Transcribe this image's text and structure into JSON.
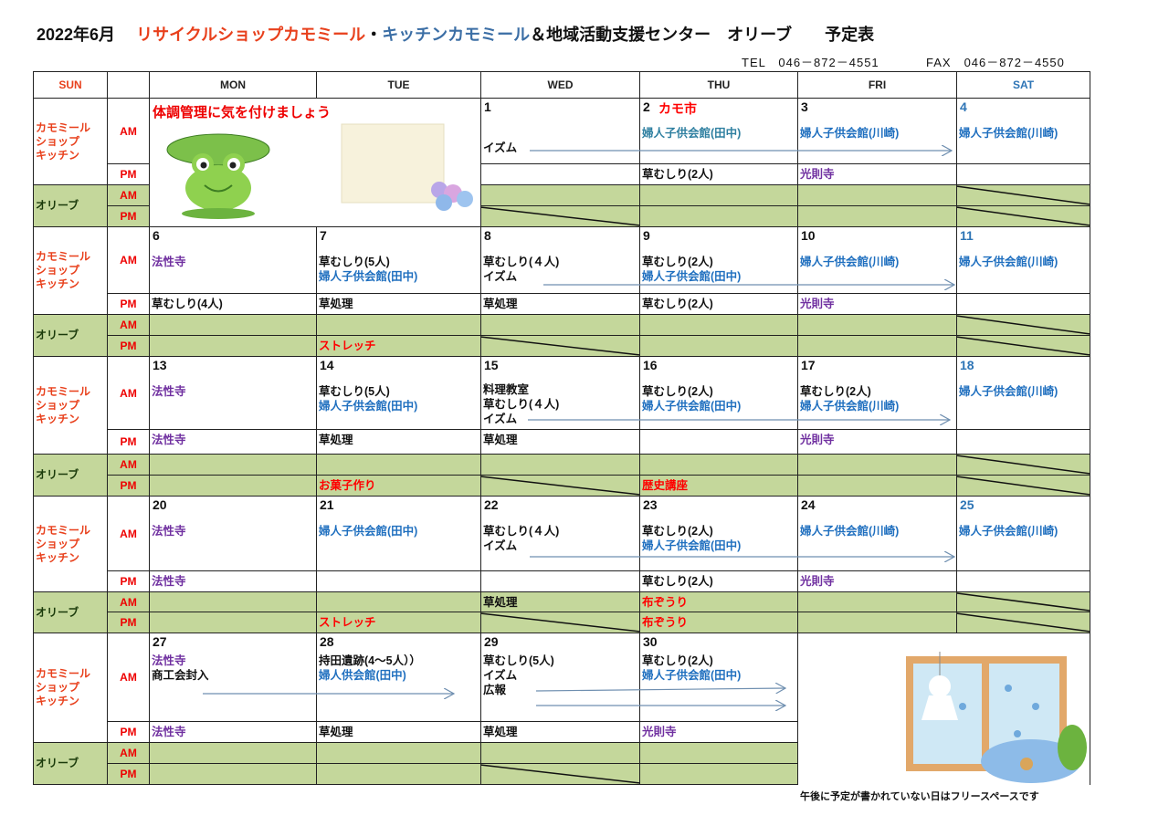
{
  "title": {
    "month": "2022年6月",
    "shop": "リサイクルショップカモミール",
    "sep": "・",
    "kitchen": "キッチンカモミール",
    "rest": "＆地域活動支援センター　オリーブ　　予定表"
  },
  "contact": {
    "tel": "TEL　046－872－4551",
    "fax": "FAX　046－872－4550"
  },
  "headers": [
    "SUN",
    "",
    "MON",
    "TUE",
    "WED",
    "THU",
    "FRI",
    "SAT"
  ],
  "labels": {
    "kamomile": "カモミール\nショップ\nキッチン",
    "olive": "オリーブ",
    "am": "AM",
    "pm": "PM"
  },
  "banner": "体調管理に気を付けましょう",
  "colors": {
    "sun": "#e8401c",
    "olive_fill": "#c4d79b",
    "sat_number": "#2e75b6",
    "event_red": "#ff0000",
    "temple_purple": "#7030a0",
    "center_blue": "#1f6fbf"
  },
  "weeks": [
    {
      "days": [
        null,
        null,
        {
          "num": "1",
          "am": [
            {
              "t": "",
              "c": "black"
            },
            {
              "t": "イズム",
              "c": "black"
            }
          ],
          "pm": [],
          "oam": [],
          "opm": [],
          "opm_closed": true
        },
        {
          "num": "2",
          "extra": "カモ市",
          "am": [
            {
              "t": "婦人子供会館(田中)",
              "c": "teal"
            }
          ],
          "pm": [
            {
              "t": "草むしり(2人)",
              "c": "black"
            }
          ],
          "oam": [],
          "opm": []
        },
        {
          "num": "3",
          "am": [
            {
              "t": "婦人子供会館(川崎)",
              "c": "blue"
            }
          ],
          "pm": [
            {
              "t": "光則寺",
              "c": "purple"
            }
          ],
          "oam": [],
          "opm": []
        },
        {
          "num": "4",
          "sat": true,
          "am": [
            {
              "t": "婦人子供会館(川崎)",
              "c": "blue"
            }
          ],
          "pm": [],
          "oam": [],
          "opm": [],
          "oam_closed": true,
          "opm_closed": true
        }
      ]
    },
    {
      "days": [
        {
          "num": "6",
          "am": [
            {
              "t": "法性寺",
              "c": "purple"
            }
          ],
          "pm": [
            {
              "t": "草むしり(4人)",
              "c": "black"
            }
          ],
          "oam": [],
          "opm": []
        },
        {
          "num": "7",
          "am": [
            {
              "t": "草むしり(5人)",
              "c": "black"
            },
            {
              "t": "婦人子供会館(田中)",
              "c": "blue"
            }
          ],
          "pm": [
            {
              "t": "草処理",
              "c": "black"
            }
          ],
          "oam": [],
          "opm": [
            {
              "t": "ストレッチ",
              "c": "red"
            }
          ]
        },
        {
          "num": "8",
          "am": [
            {
              "t": "草むしり(４人)",
              "c": "black"
            },
            {
              "t": "イズム",
              "c": "black"
            }
          ],
          "pm": [
            {
              "t": "草処理",
              "c": "black"
            }
          ],
          "oam": [],
          "opm": [],
          "opm_closed": true
        },
        {
          "num": "9",
          "am": [
            {
              "t": "草むしり(2人)",
              "c": "black"
            },
            {
              "t": "婦人子供会館(田中)",
              "c": "blue"
            }
          ],
          "pm": [
            {
              "t": "草むしり(2人)",
              "c": "black"
            }
          ],
          "oam": [],
          "opm": []
        },
        {
          "num": "10",
          "am": [
            {
              "t": "婦人子供会館(川崎)",
              "c": "blue"
            }
          ],
          "pm": [
            {
              "t": "光則寺",
              "c": "purple"
            }
          ],
          "oam": [],
          "opm": []
        },
        {
          "num": "11",
          "sat": true,
          "am": [
            {
              "t": "婦人子供会館(川崎)",
              "c": "blue"
            }
          ],
          "pm": [],
          "oam": [],
          "opm": [],
          "oam_closed": true,
          "opm_closed": true
        }
      ]
    },
    {
      "days": [
        {
          "num": "13",
          "am": [
            {
              "t": "法性寺",
              "c": "purple"
            }
          ],
          "pm": [
            {
              "t": "法性寺",
              "c": "purple"
            }
          ],
          "oam": [],
          "opm": []
        },
        {
          "num": "14",
          "am": [
            {
              "t": "草むしり(5人)",
              "c": "black"
            },
            {
              "t": "婦人子供会館(田中)",
              "c": "blue"
            }
          ],
          "pm": [
            {
              "t": "草処理",
              "c": "black"
            }
          ],
          "oam": [],
          "opm": [
            {
              "t": "お菓子作り",
              "c": "red"
            }
          ]
        },
        {
          "num": "15",
          "am": [
            {
              "t": "料理教室",
              "c": "black"
            },
            {
              "t": "草むしり(４人)",
              "c": "black"
            },
            {
              "t": "イズム",
              "c": "black"
            }
          ],
          "pm": [
            {
              "t": "草処理",
              "c": "black"
            }
          ],
          "oam": [],
          "opm": [],
          "opm_closed": true
        },
        {
          "num": "16",
          "am": [
            {
              "t": "草むしり(2人)",
              "c": "black"
            },
            {
              "t": "婦人子供会館(田中)",
              "c": "blue"
            }
          ],
          "pm": [],
          "oam": [],
          "opm": [
            {
              "t": "歴史講座",
              "c": "red"
            }
          ]
        },
        {
          "num": "17",
          "am": [
            {
              "t": "草むしり(2人)",
              "c": "black"
            },
            {
              "t": "婦人子供会館(川崎)",
              "c": "blue"
            }
          ],
          "pm": [
            {
              "t": "光則寺",
              "c": "purple"
            }
          ],
          "oam": [],
          "opm": []
        },
        {
          "num": "18",
          "sat": true,
          "am": [
            {
              "t": "婦人子供会館(川崎)",
              "c": "blue"
            }
          ],
          "pm": [],
          "oam": [],
          "opm": [],
          "oam_closed": true,
          "opm_closed": true
        }
      ]
    },
    {
      "days": [
        {
          "num": "20",
          "am": [
            {
              "t": "法性寺",
              "c": "purple"
            }
          ],
          "pm": [
            {
              "t": "法性寺",
              "c": "purple"
            }
          ],
          "oam": [],
          "opm": []
        },
        {
          "num": "21",
          "am": [
            {
              "t": "婦人子供会館(田中)",
              "c": "blue"
            }
          ],
          "pm": [],
          "oam": [],
          "opm": [
            {
              "t": "ストレッチ",
              "c": "red"
            }
          ]
        },
        {
          "num": "22",
          "am": [
            {
              "t": "草むしり(４人)",
              "c": "black"
            },
            {
              "t": "イズム",
              "c": "black"
            }
          ],
          "pm": [],
          "oam": [
            {
              "t": "草処理",
              "c": "black"
            }
          ],
          "opm": [],
          "opm_closed": true
        },
        {
          "num": "23",
          "am": [
            {
              "t": "草むしり(2人)",
              "c": "black"
            },
            {
              "t": "婦人子供会館(田中)",
              "c": "blue"
            }
          ],
          "pm": [
            {
              "t": "草むしり(2人)",
              "c": "black"
            }
          ],
          "oam": [
            {
              "t": "布ぞうり",
              "c": "red"
            }
          ],
          "opm": [
            {
              "t": "布ぞうり",
              "c": "red"
            }
          ]
        },
        {
          "num": "24",
          "am": [
            {
              "t": "婦人子供会館(川崎)",
              "c": "blue"
            }
          ],
          "pm": [
            {
              "t": "光則寺",
              "c": "purple"
            }
          ],
          "oam": [],
          "opm": []
        },
        {
          "num": "25",
          "sat": true,
          "am": [
            {
              "t": "婦人子供会館(川崎)",
              "c": "blue"
            }
          ],
          "pm": [],
          "oam": [],
          "opm": [],
          "oam_closed": true,
          "opm_closed": true
        }
      ]
    },
    {
      "days": [
        {
          "num": "27",
          "am": [
            {
              "t": "法性寺",
              "c": "purple"
            },
            {
              "t": "商工会封入",
              "c": "black"
            }
          ],
          "pm": [
            {
              "t": "法性寺",
              "c": "purple"
            }
          ],
          "oam": [],
          "opm": []
        },
        {
          "num": "28",
          "am": [
            {
              "t": "持田遺跡(4～5人））",
              "c": "black"
            },
            {
              "t": "婦人供会館(田中)",
              "c": "blue"
            }
          ],
          "pm": [
            {
              "t": "草処理",
              "c": "black"
            }
          ],
          "oam": [],
          "opm": []
        },
        {
          "num": "29",
          "am": [
            {
              "t": "草むしり(5人)",
              "c": "black"
            },
            {
              "t": "イズム",
              "c": "black"
            },
            {
              "t": "広報",
              "c": "black"
            }
          ],
          "pm": [
            {
              "t": "草処理",
              "c": "black"
            }
          ],
          "oam": [],
          "opm": [],
          "opm_closed": true
        },
        {
          "num": "30",
          "am": [
            {
              "t": "草むしり(2人)",
              "c": "black"
            },
            {
              "t": "婦人子供会館(田中)",
              "c": "blue"
            }
          ],
          "pm": [
            {
              "t": "光則寺",
              "c": "purple"
            }
          ],
          "oam": [],
          "opm": []
        },
        null,
        null
      ]
    }
  ],
  "footnote": "午後に予定が書かれていない日はフリースペースです"
}
